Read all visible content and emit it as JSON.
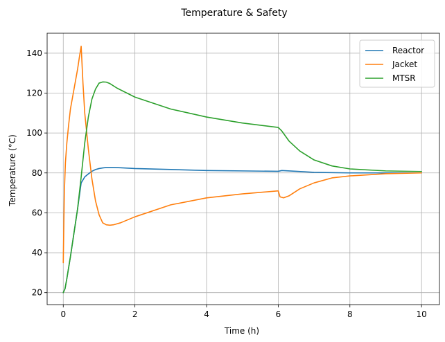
{
  "chart_data": {
    "type": "line",
    "title": "Temperature & Safety",
    "xlabel": "Time (h)",
    "ylabel": "Temperature (°C)",
    "xlim": [
      -0.45,
      10.5
    ],
    "ylim": [
      14,
      150
    ],
    "xticks": [
      0,
      2,
      4,
      6,
      8,
      10
    ],
    "yticks": [
      20,
      40,
      60,
      80,
      100,
      120,
      140
    ],
    "grid": true,
    "legend_position": "top-right",
    "series": [
      {
        "name": "Reactor",
        "color": "#1f77b4",
        "x": [
          0,
          0.05,
          0.1,
          0.2,
          0.3,
          0.4,
          0.5,
          0.6,
          0.7,
          0.8,
          0.9,
          1.0,
          1.1,
          1.2,
          1.4,
          1.6,
          2.0,
          3.0,
          4.0,
          5.0,
          6.0,
          6.1,
          6.5,
          7.0,
          8.0,
          9.0,
          10.0
        ],
        "values": [
          20,
          22,
          27,
          38,
          50,
          62,
          75,
          78,
          79.5,
          80.8,
          81.7,
          82.2,
          82.5,
          82.7,
          82.7,
          82.6,
          82.2,
          81.7,
          81.2,
          81.0,
          80.8,
          81.2,
          80.8,
          80.3,
          80.0,
          80.0,
          80.0
        ]
      },
      {
        "name": "Jacket",
        "color": "#ff7f0e",
        "x": [
          0,
          0.03,
          0.06,
          0.1,
          0.15,
          0.2,
          0.3,
          0.4,
          0.45,
          0.5,
          0.55,
          0.6,
          0.7,
          0.8,
          0.9,
          1.0,
          1.1,
          1.2,
          1.3,
          1.4,
          1.6,
          2.0,
          3.0,
          4.0,
          5.0,
          6.0,
          6.05,
          6.15,
          6.3,
          6.6,
          7.0,
          7.5,
          8.0,
          9.0,
          10.0
        ],
        "values": [
          35,
          70,
          85,
          95,
          104,
          112,
          122,
          132,
          138,
          143.5,
          125,
          110,
          92,
          77,
          66,
          59,
          55,
          54,
          53.8,
          54,
          55,
          58,
          64,
          67.5,
          69.5,
          71,
          68,
          67.5,
          68.5,
          72,
          75,
          77.5,
          78.5,
          79.6,
          80
        ]
      },
      {
        "name": "MTSR",
        "color": "#2ca02c",
        "x": [
          0,
          0.05,
          0.1,
          0.2,
          0.3,
          0.4,
          0.5,
          0.6,
          0.7,
          0.8,
          0.9,
          1.0,
          1.1,
          1.2,
          1.3,
          1.5,
          2.0,
          3.0,
          4.0,
          5.0,
          6.0,
          6.1,
          6.3,
          6.6,
          7.0,
          7.5,
          8.0,
          9.0,
          10.0
        ],
        "values": [
          20,
          22,
          27,
          38,
          50,
          62,
          78,
          95,
          108,
          117,
          122,
          125,
          125.6,
          125.5,
          124.8,
          122.5,
          118,
          112,
          108,
          105,
          102.8,
          101,
          96,
          91,
          86.5,
          83.5,
          82,
          81,
          80.7
        ]
      }
    ]
  }
}
